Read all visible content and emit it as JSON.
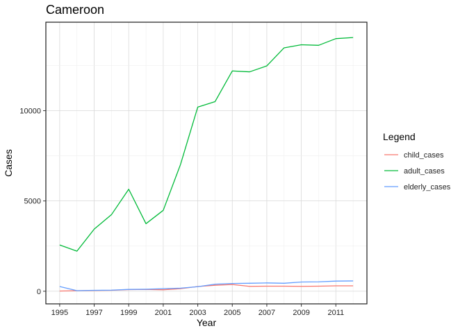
{
  "chart_data": {
    "type": "line",
    "title": "Cameroon",
    "xlabel": "Year",
    "ylabel": "Cases",
    "xlim": [
      1994.2,
      2012.8
    ],
    "ylim": [
      -700,
      14900
    ],
    "x_ticks": [
      1995,
      1997,
      1999,
      2001,
      2003,
      2005,
      2007,
      2009,
      2011
    ],
    "y_ticks": [
      0,
      5000,
      10000
    ],
    "y_tick_labels": [
      "0",
      "5000",
      "10000"
    ],
    "grid": true,
    "legend": {
      "title": "Legend",
      "position": "right"
    },
    "x": [
      1995,
      1996,
      1997,
      1998,
      1999,
      2000,
      2001,
      2002,
      2003,
      2004,
      2005,
      2006,
      2007,
      2008,
      2009,
      2010,
      2011,
      2012
    ],
    "series": [
      {
        "name": "child_cases",
        "color": "#F8766D",
        "values": [
          10,
          30,
          40,
          50,
          90,
          100,
          80,
          140,
          260,
          330,
          370,
          270,
          280,
          280,
          270,
          280,
          300,
          300
        ]
      },
      {
        "name": "adult_cases",
        "color": "#00BA38",
        "values": [
          2560,
          2220,
          3440,
          4240,
          5650,
          3740,
          4480,
          7020,
          10200,
          10500,
          12200,
          12150,
          12480,
          13480,
          13650,
          13620,
          13990,
          14050
        ]
      },
      {
        "name": "elderly_cases",
        "color": "#619CFF",
        "values": [
          260,
          30,
          50,
          60,
          100,
          110,
          140,
          170,
          250,
          390,
          430,
          440,
          460,
          440,
          510,
          520,
          560,
          570
        ]
      }
    ]
  }
}
